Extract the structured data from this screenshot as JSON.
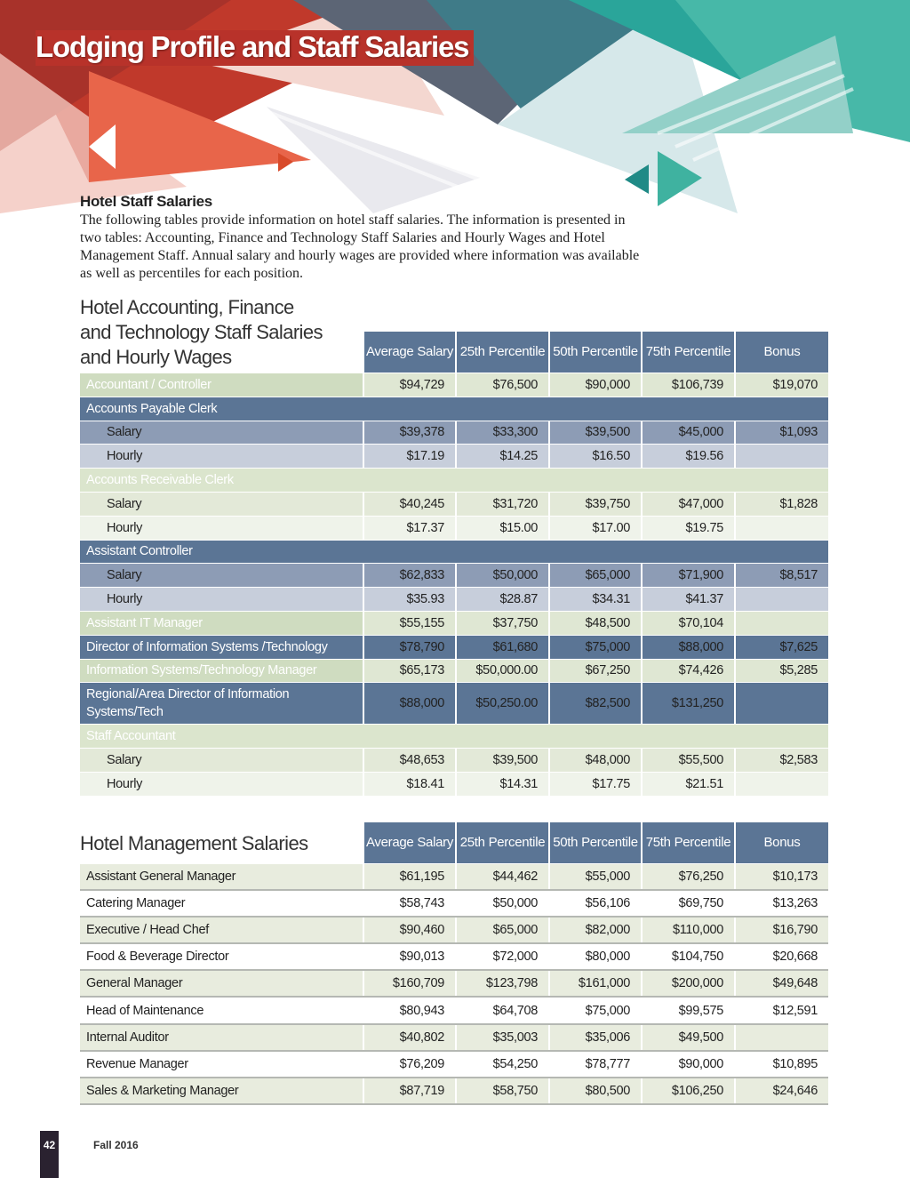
{
  "header": {
    "title": "Lodging Profile and Staff Salaries"
  },
  "intro": {
    "heading": "Hotel Staff Salaries",
    "text": "The following tables provide information on hotel staff salaries. The information is presented in two tables: Accounting, Finance and Technology Staff Salaries and Hourly Wages and Hotel Management Staff. Annual salary and hourly wages are provided where information was available as well as percentiles for each position."
  },
  "table1": {
    "caption": "Hotel Accounting, Finance and Technology Staff Salaries and Hourly Wages",
    "columns": [
      "Average Salary",
      "25th Percentile",
      "50th Percentile",
      "75th Percentile",
      "Bonus"
    ],
    "groups": [
      {
        "name": "Accountant / Controller",
        "values": [
          "$94,729",
          "$76,500",
          "$90,000",
          "$106,739",
          "$19,070"
        ]
      },
      {
        "name": "Accounts Payable Clerk",
        "rows": [
          {
            "label": "Salary",
            "values": [
              "$39,378",
              "$33,300",
              "$39,500",
              "$45,000",
              "$1,093"
            ]
          },
          {
            "label": "Hourly",
            "values": [
              "$17.19",
              "$14.25",
              "$16.50",
              "$19.56",
              null
            ]
          }
        ]
      },
      {
        "name": "Accounts Receivable Clerk",
        "rows": [
          {
            "label": "Salary",
            "values": [
              "$40,245",
              "$31,720",
              "$39,750",
              "$47,000",
              "$1,828"
            ]
          },
          {
            "label": "Hourly",
            "values": [
              "$17.37",
              "$15.00",
              "$17.00",
              "$19.75",
              null
            ]
          }
        ]
      },
      {
        "name": "Assistant Controller",
        "rows": [
          {
            "label": "Salary",
            "values": [
              "$62,833",
              "$50,000",
              "$65,000",
              "$71,900",
              "$8,517"
            ]
          },
          {
            "label": "Hourly",
            "values": [
              "$35.93",
              "$28.87",
              "$34.31",
              "$41.37",
              null
            ]
          }
        ]
      },
      {
        "name": "Assistant IT Manager",
        "values": [
          "$55,155",
          "$37,750",
          "$48,500",
          "$70,104",
          null
        ]
      },
      {
        "name": "Director of Information Systems /Technology",
        "values": [
          "$78,790",
          "$61,680",
          "$75,000",
          "$88,000",
          "$7,625"
        ]
      },
      {
        "name": "Information Systems/Technology Manager",
        "values": [
          "$65,173",
          "$50,000.00",
          "$67,250",
          "$74,426",
          "$5,285"
        ]
      },
      {
        "name": "Regional/Area Director of Information Systems/Tech",
        "values": [
          "$88,000",
          "$50,250.00",
          "$82,500",
          "$131,250",
          null
        ]
      },
      {
        "name": "Staff Accountant",
        "rows": [
          {
            "label": "Salary",
            "values": [
              "$48,653",
              "$39,500",
              "$48,000",
              "$55,500",
              "$2,583"
            ]
          },
          {
            "label": "Hourly",
            "values": [
              "$18.41",
              "$14.31",
              "$17.75",
              "$21.51",
              null
            ]
          }
        ]
      }
    ]
  },
  "table2": {
    "caption": "Hotel Management Salaries",
    "columns": [
      "Average Salary",
      "25th Percentile",
      "50th Percentile",
      "75th Percentile",
      "Bonus"
    ],
    "rows": [
      {
        "label": "Assistant General Manager",
        "values": [
          "$61,195",
          "$44,462",
          "$55,000",
          "$76,250",
          "$10,173"
        ]
      },
      {
        "label": "Catering Manager",
        "values": [
          "$58,743",
          "$50,000",
          "$56,106",
          "$69,750",
          "$13,263"
        ]
      },
      {
        "label": "Executive / Head Chef",
        "values": [
          "$90,460",
          "$65,000",
          "$82,000",
          "$110,000",
          "$16,790"
        ]
      },
      {
        "label": "Food & Beverage Director",
        "values": [
          "$90,013",
          "$72,000",
          "$80,000",
          "$104,750",
          "$20,668"
        ]
      },
      {
        "label": "General Manager",
        "values": [
          "$160,709",
          "$123,798",
          "$161,000",
          "$200,000",
          "$49,648"
        ]
      },
      {
        "label": "Head of Maintenance",
        "values": [
          "$80,943",
          "$64,708",
          "$75,000",
          "$99,575",
          "$12,591"
        ]
      },
      {
        "label": "Internal Auditor",
        "values": [
          "$40,802",
          "$35,003",
          "$35,006",
          "$49,500",
          null
        ]
      },
      {
        "label": "Revenue Manager",
        "values": [
          "$76,209",
          "$54,250",
          "$78,777",
          "$90,000",
          "$10,895"
        ]
      },
      {
        "label": "Sales & Marketing Manager",
        "values": [
          "$87,719",
          "$58,750",
          "$80,500",
          "$106,250",
          "$24,646"
        ]
      }
    ]
  },
  "footer": {
    "page": "42",
    "issue": "Fall 2016"
  }
}
